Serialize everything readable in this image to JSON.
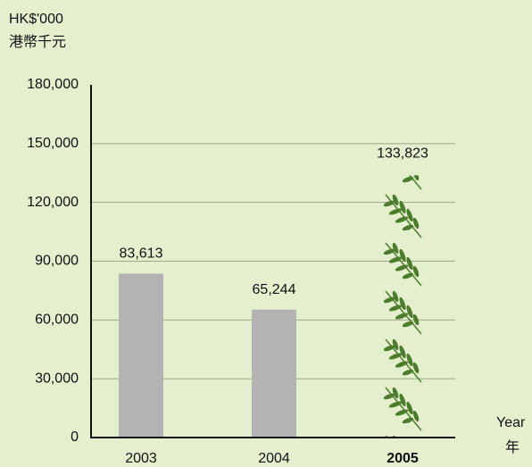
{
  "chart_data": {
    "type": "bar",
    "y_label": "HK$'000",
    "y_label_zh": "港幣千元",
    "x_label": "Year",
    "x_label_zh": "年",
    "categories": [
      "2003",
      "2004",
      "2005"
    ],
    "values": [
      83613,
      65244,
      133823
    ],
    "value_labels": [
      "83,613",
      "65,244",
      "133,823"
    ],
    "color": "#b3b3b3",
    "highlight": "2005",
    "highlight_color": "#4d7d2c",
    "ylim": [
      0,
      180000
    ],
    "yticks": [
      {
        "value": 0,
        "label": "0"
      },
      {
        "value": 30000,
        "label": "30,000"
      },
      {
        "value": 60000,
        "label": "60,000"
      },
      {
        "value": 90000,
        "label": "90,000"
      },
      {
        "value": 120000,
        "label": "120,000"
      },
      {
        "value": 150000,
        "label": "150,000"
      },
      {
        "value": 180000,
        "label": "180,000"
      }
    ],
    "grid": true
  }
}
